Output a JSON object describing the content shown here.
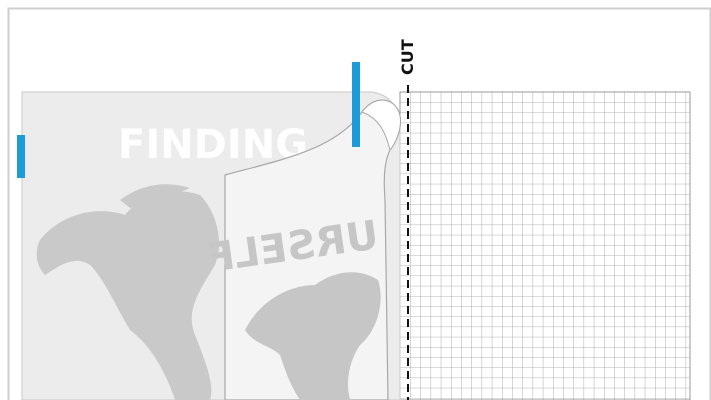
{
  "labels": {
    "cut": "CUT",
    "front_word": "FINDING",
    "back_word": "URSELF"
  }
}
